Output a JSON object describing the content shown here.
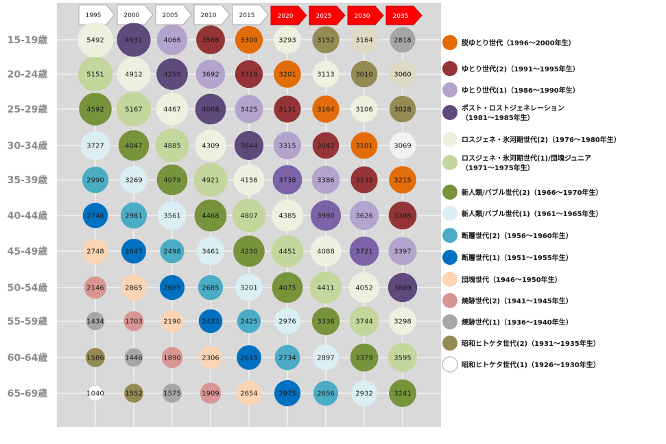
{
  "chart_data": {
    "type": "bubble",
    "title": "",
    "years": [
      {
        "label": "1995",
        "projected": false
      },
      {
        "label": "2000",
        "projected": false
      },
      {
        "label": "2005",
        "projected": false
      },
      {
        "label": "2010",
        "projected": false
      },
      {
        "label": "2015",
        "projected": false
      },
      {
        "label": "2020",
        "projected": true
      },
      {
        "label": "2025",
        "projected": true
      },
      {
        "label": "2030",
        "projected": true
      },
      {
        "label": "2035",
        "projected": true
      }
    ],
    "age_groups": [
      "15-19歳",
      "20-24歳",
      "25-29歳",
      "30-34歳",
      "35-39歳",
      "40-44歳",
      "45-49歳",
      "50-54歳",
      "55-59歳",
      "60-64歳",
      "65-69歳"
    ],
    "values": [
      [
        5492,
        4931,
        4066,
        3586,
        3300,
        3293,
        3152,
        3164,
        2818
      ],
      [
        5151,
        4912,
        4250,
        3692,
        3318,
        3201,
        3113,
        3010,
        3060
      ],
      [
        4592,
        5167,
        4467,
        4068,
        3425,
        3131,
        3164,
        3106,
        3028
      ],
      [
        3727,
        4047,
        4885,
        4309,
        3644,
        3315,
        3042,
        3101,
        3069
      ],
      [
        2990,
        3269,
        4079,
        4921,
        4156,
        3738,
        3386,
        3135,
        3215
      ],
      [
        2746,
        2981,
        3561,
        4468,
        4807,
        4385,
        3980,
        3626,
        3388
      ],
      [
        2748,
        2647,
        2498,
        3461,
        4230,
        4451,
        4088,
        3721,
        3397
      ],
      [
        2146,
        2865,
        2685,
        2685,
        3201,
        4075,
        4411,
        4052,
        3689
      ],
      [
        1434,
        1703,
        2190,
        2433,
        2425,
        2976,
        3336,
        3744,
        3298
      ],
      [
        1586,
        1446,
        1890,
        2306,
        2615,
        2734,
        2897,
        3379,
        3595
      ],
      [
        1040,
        1552,
        1575,
        1909,
        2654,
        2975,
        2656,
        2932,
        3241
      ]
    ],
    "generation_index": [
      [
        0,
        1,
        2,
        3,
        4,
        5,
        6,
        7,
        8
      ],
      [
        1,
        2,
        3,
        4,
        5,
        6,
        7,
        8,
        9
      ],
      [
        2,
        3,
        4,
        5,
        6,
        7,
        8,
        9,
        10
      ],
      [
        3,
        4,
        5,
        6,
        7,
        8,
        9,
        10,
        11
      ],
      [
        4,
        5,
        6,
        7,
        8,
        9,
        10,
        11,
        12
      ],
      [
        5,
        6,
        7,
        8,
        9,
        10,
        11,
        12,
        13
      ],
      [
        6,
        7,
        8,
        9,
        10,
        11,
        12,
        13,
        14
      ],
      [
        7,
        8,
        9,
        10,
        11,
        12,
        13,
        14,
        15
      ],
      [
        8,
        9,
        10,
        11,
        12,
        13,
        14,
        15,
        16
      ],
      [
        9,
        10,
        11,
        12,
        13,
        14,
        15,
        16,
        17
      ],
      [
        10,
        11,
        12,
        13,
        14,
        15,
        16,
        17,
        18
      ]
    ],
    "cell_colors": [
      [
        "#eef1df",
        "#5e4b7c",
        "#b2a4cc",
        "#943436",
        "#e36c0a",
        "#eef1df",
        "#948a54",
        "#ddd9c3",
        "#a6a6a6"
      ],
      [
        "#c3d69b",
        "#eef1df",
        "#5e4b7c",
        "#b2a4cc",
        "#943436",
        "#e36c0a",
        "#eef1df",
        "#948a54",
        "#ddd9c3"
      ],
      [
        "#77933c",
        "#c3d69b",
        "#eef1df",
        "#5e4b7c",
        "#b2a4cc",
        "#943436",
        "#e36c0a",
        "#eef1df",
        "#948a54"
      ],
      [
        "#dbeef4",
        "#77933c",
        "#c3d69b",
        "#eef1df",
        "#5e4b7c",
        "#b2a4cc",
        "#943436",
        "#e36c0a",
        "#f2f2f2"
      ],
      [
        "#4bacc6",
        "#dbeef4",
        "#77933c",
        "#c3d69b",
        "#eef1df",
        "#7c62a6",
        "#b2a4cc",
        "#943436",
        "#e36c0a"
      ],
      [
        "#0070c0",
        "#4bacc6",
        "#dbeef4",
        "#77933c",
        "#c3d69b",
        "#eef1df",
        "#7c62a6",
        "#b2a4cc",
        "#943436"
      ],
      [
        "#fcd5b5",
        "#0070c0",
        "#4bacc6",
        "#dbeef4",
        "#77933c",
        "#c3d69b",
        "#eef1df",
        "#7c62a6",
        "#b2a4cc"
      ],
      [
        "#d99594",
        "#fcd5b5",
        "#0070c0",
        "#4bacc6",
        "#dbeef4",
        "#77933c",
        "#c3d69b",
        "#eef1df",
        "#5e4b7c"
      ],
      [
        "#a6a6a6",
        "#d99594",
        "#fcd5b5",
        "#0070c0",
        "#4bacc6",
        "#dbeef4",
        "#77933c",
        "#c3d69b",
        "#eef1df"
      ],
      [
        "#948a54",
        "#a6a6a6",
        "#d99594",
        "#fcd5b5",
        "#0070c0",
        "#4bacc6",
        "#dbeef4",
        "#77933c",
        "#c3d69b"
      ],
      [
        "#ffffff",
        "#948a54",
        "#a6a6a6",
        "#d99594",
        "#fcd5b5",
        "#0070c0",
        "#4bacc6",
        "#dbeef4",
        "#77933c"
      ]
    ],
    "dark_text_cells": [],
    "legend": [
      {
        "label": "脱ゆとり世代（1996～2000年生）",
        "color": "#e36c0a"
      },
      {
        "label": "ゆとり世代(2)（1991～1995年生）",
        "color": "#943436"
      },
      {
        "label": "ゆとり世代(1)（1986～1990年生）",
        "color": "#b2a4cc"
      },
      {
        "label": "ポスト・ロストジェネレーション",
        "label2": "（1981～1985年生）",
        "color": "#5e4b7c"
      },
      {
        "label": "ロスジェネ・氷河期世代(2)（1976～1980年生）",
        "color": "#eef1df"
      },
      {
        "label": "ロスジェネ・氷河期世代(1)/団塊ジュニア",
        "label2": "（1971～1975年生）",
        "color": "#c3d69b"
      },
      {
        "label": "新人類/バブル世代(2)（1966～1970年生）",
        "color": "#77933c"
      },
      {
        "label": "新人類/バブル世代(1)（1961～1965年生）",
        "color": "#dbeef4"
      },
      {
        "label": "断層世代(2)（1956～1960年生）",
        "color": "#4bacc6"
      },
      {
        "label": "断層世代(1)（1951～1955年生）",
        "color": "#0070c0"
      },
      {
        "label": "団塊世代（1946～1950年生）",
        "color": "#fcd5b5"
      },
      {
        "label": "焼跡世代(2)（1941～1945年生）",
        "color": "#d99594"
      },
      {
        "label": "焼跡世代(1)（1936～1940年生）",
        "color": "#a6a6a6"
      },
      {
        "label": "昭和ヒトケタ世代(2)（1931～1935年生）",
        "color": "#948a54"
      },
      {
        "label": "昭和ヒトケタ世代(1)（1926～1930年生）",
        "color": "#ffffff"
      }
    ]
  }
}
